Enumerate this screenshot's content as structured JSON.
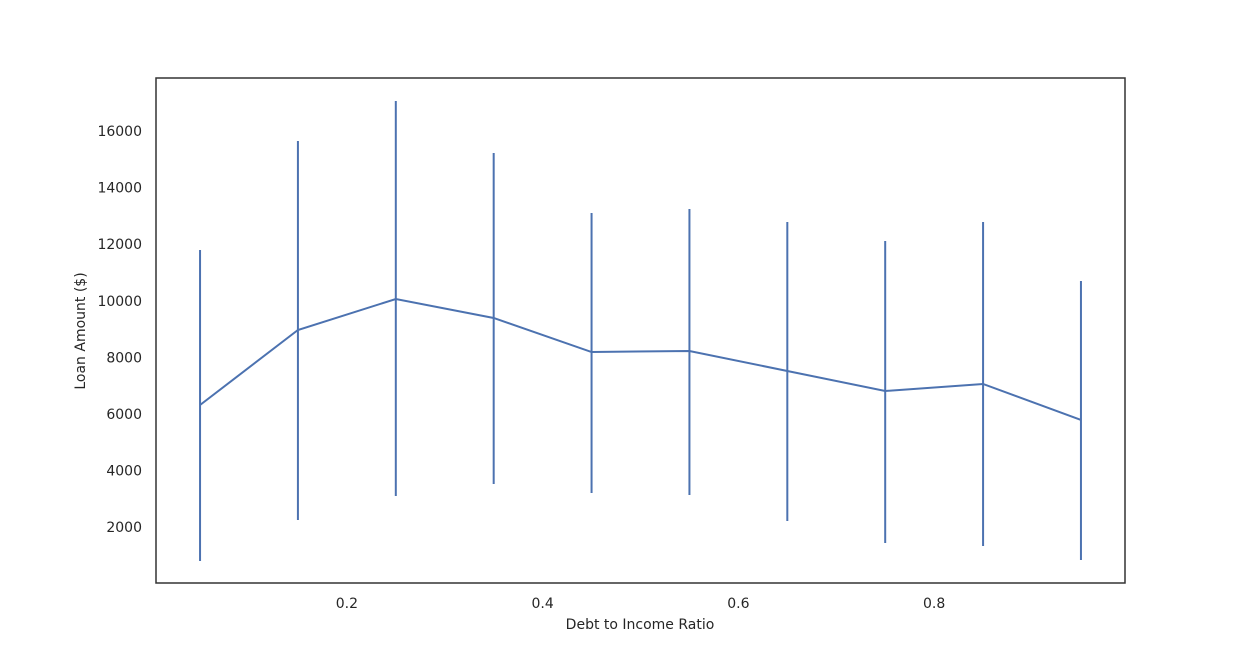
{
  "chart_data": {
    "type": "line_errorbar",
    "x_label": "Debt to Income Ratio",
    "y_label": "Loan Amount ($)",
    "x": [
      0.05,
      0.15,
      0.25,
      0.35,
      0.45,
      0.55,
      0.65,
      0.75,
      0.85,
      0.95
    ],
    "series": [
      {
        "color": "#4c72b0",
        "values": [
          6349,
          9001,
          10097,
          9426,
          8223,
          8259,
          7552,
          6844,
          7092,
          5819
        ],
        "lower": [
          833,
          2283,
          3132,
          3556,
          3238,
          3167,
          2248,
          1470,
          1364,
          868
        ],
        "upper": [
          11830,
          15684,
          17099,
          15260,
          13138,
          13280,
          12820,
          12148,
          12820,
          10734
        ]
      }
    ],
    "xlim": [
      0.005,
      0.995
    ],
    "ylim": [
      55,
      17912
    ],
    "xticks": [
      0.2,
      0.4,
      0.6,
      0.8
    ],
    "yticks": [
      2000,
      4000,
      6000,
      8000,
      10000,
      12000,
      14000,
      16000
    ]
  }
}
